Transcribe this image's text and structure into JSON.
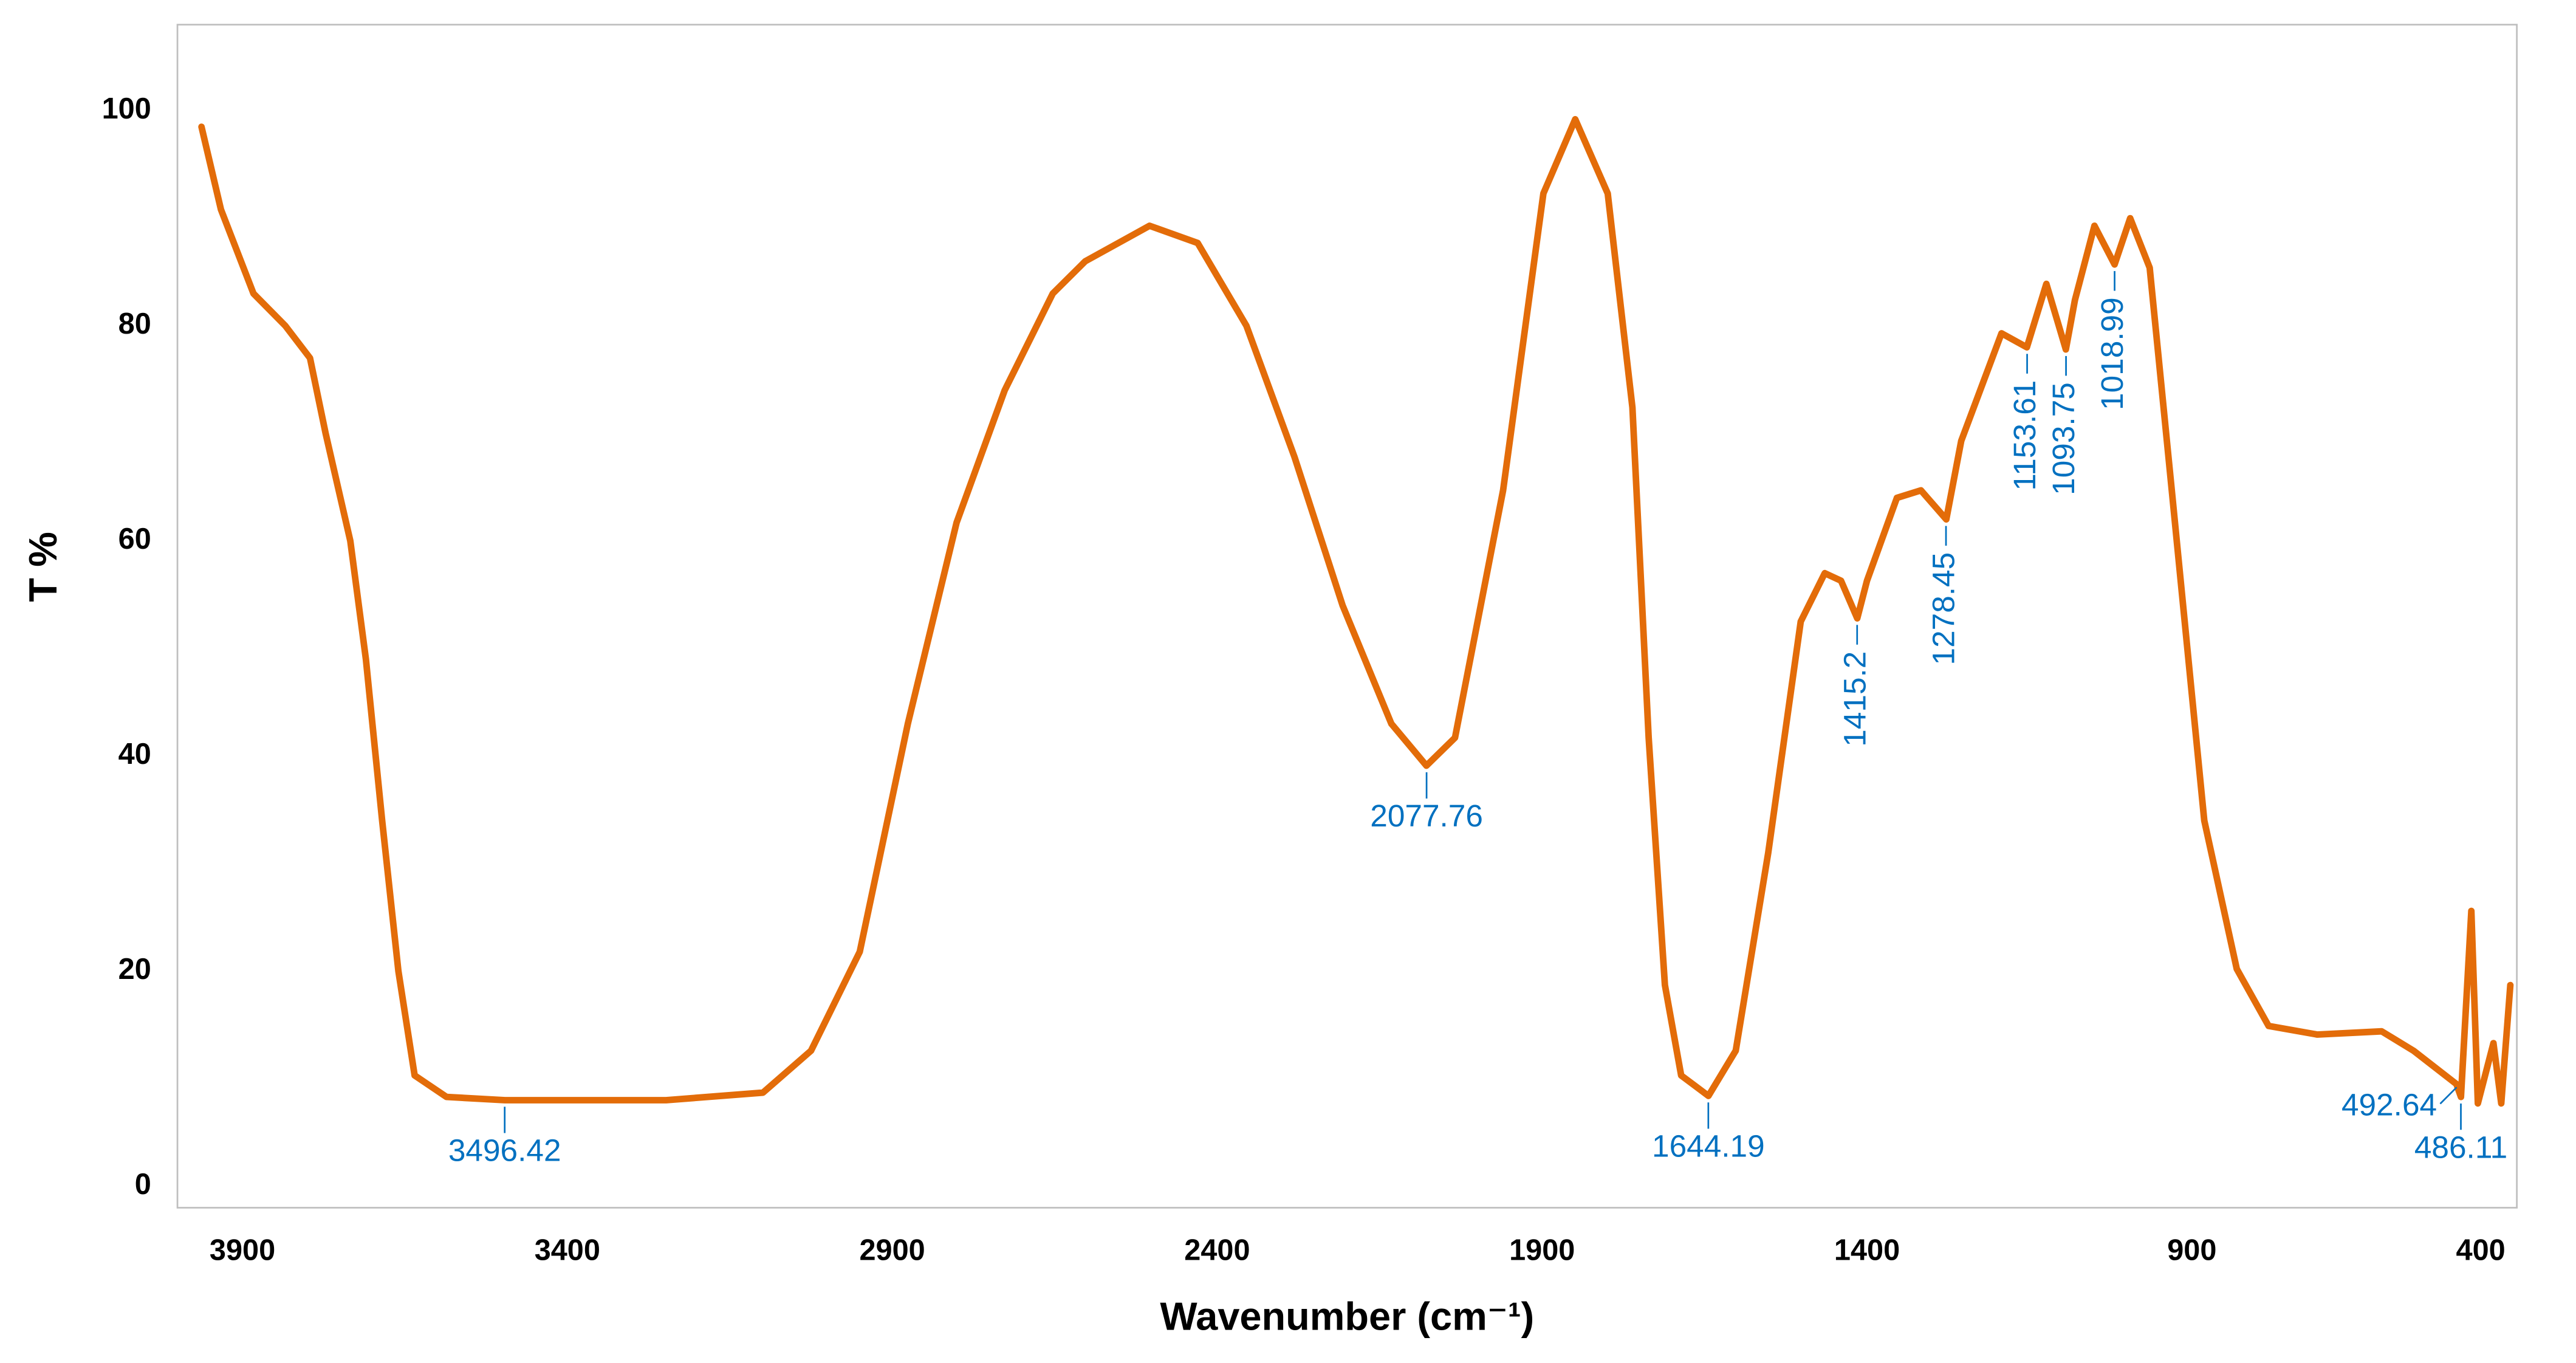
{
  "chart_data": {
    "type": "line",
    "x_label": "Wavenumber (cm⁻¹)",
    "y_label": "T %",
    "color": "#e36c09",
    "annotation_color": "#0070c0",
    "xlim": [
      4000,
      400
    ],
    "xticks": [
      3900,
      3400,
      2900,
      2400,
      1900,
      1400,
      900,
      400
    ],
    "ylim": [
      -2,
      108
    ],
    "yticks": [
      0,
      20,
      40,
      60,
      80,
      100
    ],
    "grid": false,
    "x": [
      3963,
      3933,
      3883,
      3834,
      3796,
      3772,
      3734,
      3710,
      3685,
      3660,
      3635,
      3586,
      3496,
      3248,
      3099,
      3025,
      2950,
      2876,
      2801,
      2727,
      2653,
      2603,
      2504,
      2430,
      2355,
      2281,
      2207,
      2132,
      2078,
      2034,
      1960,
      1898,
      1849,
      1799,
      1761,
      1736,
      1711,
      1686,
      1644,
      1602,
      1552,
      1502,
      1465,
      1440,
      1415,
      1400,
      1354,
      1317,
      1278,
      1255,
      1193,
      1154,
      1124,
      1094,
      1080,
      1050,
      1019,
      995,
      965,
      931,
      881,
      831,
      782,
      707,
      608,
      559,
      493,
      486,
      470,
      460,
      436,
      424,
      410
    ],
    "values": [
      98.5,
      90.8,
      83,
      80,
      77,
      70,
      60,
      49,
      34,
      20,
      10.3,
      8.3,
      8,
      8,
      8.7,
      12.6,
      21.8,
      43,
      61.7,
      74,
      83,
      86,
      89.3,
      87.7,
      80,
      67.8,
      54,
      43,
      39.1,
      41.7,
      64.7,
      92.3,
      99.2,
      92.3,
      72.4,
      41.7,
      18.7,
      10.3,
      8.4,
      12.6,
      31,
      52.5,
      57,
      56.3,
      52.8,
      56.3,
      64,
      64.7,
      62,
      69.3,
      79.3,
      78,
      83.9,
      77.8,
      82.4,
      89.3,
      85.7,
      90,
      85.4,
      64.7,
      34,
      20.2,
      14.9,
      14.1,
      14.4,
      12.6,
      9.5,
      8.3,
      25.6,
      7.7,
      13.3,
      7.7,
      18.7
    ],
    "annotations": [
      {
        "label": "3496.42",
        "x": 3496.42,
        "y": 8,
        "orientation": "horizontal",
        "anchor": "below"
      },
      {
        "label": "2077.76",
        "x": 2077.76,
        "y": 39.1,
        "orientation": "horizontal",
        "anchor": "below"
      },
      {
        "label": "1644.19",
        "x": 1644.19,
        "y": 8.4,
        "orientation": "horizontal",
        "anchor": "below"
      },
      {
        "label": "1415.2",
        "x": 1415.2,
        "y": 52.8,
        "orientation": "vertical",
        "anchor": "below"
      },
      {
        "label": "1278.45",
        "x": 1278.45,
        "y": 62,
        "orientation": "vertical",
        "anchor": "below"
      },
      {
        "label": "1153.61",
        "x": 1153.61,
        "y": 78,
        "orientation": "vertical",
        "anchor": "below"
      },
      {
        "label": "1093.75",
        "x": 1093.75,
        "y": 77.8,
        "orientation": "vertical",
        "anchor": "below"
      },
      {
        "label": "1018.99",
        "x": 1018.99,
        "y": 85.7,
        "orientation": "vertical",
        "anchor": "below"
      },
      {
        "label": "492.64",
        "x": 492.64,
        "y": 9.5,
        "orientation": "horizontal",
        "anchor": "left"
      },
      {
        "label": "486.11",
        "x": 486.11,
        "y": 8.3,
        "orientation": "horizontal",
        "anchor": "below"
      }
    ]
  }
}
